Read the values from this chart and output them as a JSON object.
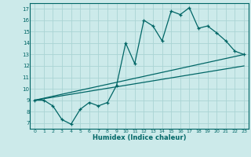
{
  "xlabel": "Humidex (Indice chaleur)",
  "background_color": "#cceaea",
  "grid_color": "#aad4d4",
  "line_color": "#006666",
  "xlim": [
    -0.5,
    23.5
  ],
  "ylim": [
    6.5,
    17.5
  ],
  "xticks": [
    0,
    1,
    2,
    3,
    4,
    5,
    6,
    7,
    8,
    9,
    10,
    11,
    12,
    13,
    14,
    15,
    16,
    17,
    18,
    19,
    20,
    21,
    22,
    23
  ],
  "yticks": [
    7,
    8,
    9,
    10,
    11,
    12,
    13,
    14,
    15,
    16,
    17
  ],
  "main_x": [
    0,
    1,
    2,
    3,
    4,
    5,
    6,
    7,
    8,
    9,
    10,
    11,
    12,
    13,
    14,
    15,
    16,
    17,
    18,
    19,
    20,
    21,
    22,
    23
  ],
  "main_y": [
    9.0,
    9.0,
    8.5,
    7.3,
    6.9,
    8.2,
    8.8,
    8.5,
    8.8,
    10.3,
    14.0,
    12.2,
    16.0,
    15.5,
    14.2,
    16.8,
    16.5,
    17.1,
    15.3,
    15.5,
    14.9,
    14.2,
    13.3,
    13.0
  ],
  "line1_x": [
    0,
    23
  ],
  "line1_y": [
    9.0,
    13.0
  ],
  "line2_x": [
    0,
    23
  ],
  "line2_y": [
    9.0,
    12.0
  ]
}
